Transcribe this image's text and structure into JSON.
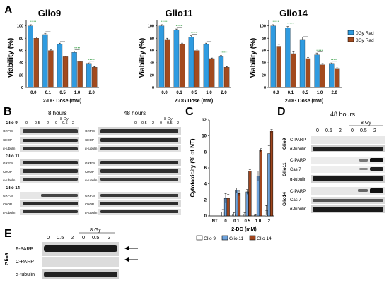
{
  "panels": {
    "A": {
      "letter": "A",
      "charts": [
        {
          "title": "Glio9",
          "ylabel": "Viability (%)",
          "xlabel": "2-DG Dose (mM)",
          "yticks": [
            "0",
            "20",
            "40",
            "60",
            "80",
            "100"
          ],
          "x": [
            "0.0",
            "0.1",
            "0.5",
            "1.0",
            "2.0"
          ]
        },
        {
          "title": "Glio11",
          "ylabel": "Viability (%)",
          "xlabel": "2-DG Dose (mM)",
          "yticks": [
            "0",
            "20",
            "40",
            "60",
            "80",
            "100"
          ],
          "x": [
            "0.0",
            "0.1",
            "0.5",
            "1.0",
            "2.0"
          ]
        },
        {
          "title": "Glio14",
          "ylabel": "Viability (%)",
          "xlabel": "2-DG Dose (mM)",
          "yticks": [
            "0",
            "20",
            "40",
            "60",
            "80",
            "100"
          ],
          "x": [
            "0.0",
            "0.1",
            "0.5",
            "1.0",
            "2.0"
          ]
        }
      ],
      "legend": [
        "0Gy Rad",
        "8Gy Rad"
      ]
    },
    "B": {
      "letter": "B",
      "time_labels": [
        "8 hours",
        "48 hours"
      ],
      "dose_labels": [
        "0",
        "0.5",
        "2",
        "0",
        "0.5",
        "2"
      ],
      "gy_label": "8 Gy",
      "lines": [
        "Glio 9",
        "Glio 11",
        "Glio 14"
      ],
      "proteins": [
        "GRP78",
        "CHOP",
        "α-tubulin"
      ]
    },
    "C": {
      "letter": "C",
      "ylabel": "Cytotoxicity (% of NT)",
      "xlabel": "2-DG (mM)",
      "yticks": [
        "0",
        "2",
        "4",
        "6",
        "8",
        "10",
        "12"
      ],
      "legend": [
        "Glio 9",
        "Glio 11",
        "Glio 14"
      ]
    },
    "D": {
      "letter": "D",
      "time_label": "48 hours",
      "gy_label": "8 Gy",
      "dose_labels": [
        "0",
        "0.5",
        "2",
        "0",
        "0.5",
        "2"
      ],
      "groups": [
        {
          "line": "Glio9",
          "rows": [
            "C-PARP",
            "α-tubulin"
          ]
        },
        {
          "line": "Glio11",
          "rows": [
            "C-PARP",
            "Cas 7",
            "α-tubulin"
          ]
        },
        {
          "line": "Glio14",
          "rows": [
            "C-PARP",
            "Cas 7",
            "α-tubulin"
          ]
        }
      ]
    },
    "E": {
      "letter": "E",
      "gy_label": "8 Gy",
      "dose_labels": [
        "0",
        "0.5",
        "2",
        "0",
        "0.5",
        "2"
      ],
      "line": "Glio9",
      "rows": [
        "F-PARP",
        "C-PARP",
        "α-tubulin"
      ]
    }
  },
  "colors": {
    "gy0": "#2f9be0",
    "gy8": "#a24a1e",
    "glio9": "#ffffff",
    "glio11": "#6fa3dc",
    "glio14": "#a1461e",
    "sig_green": "#2e9a3e",
    "sig_red": "#c82828"
  },
  "chart_data": [
    {
      "type": "bar",
      "title": "Glio9",
      "xlabel": "2-DG Dose (mM)",
      "ylabel": "Viability (%)",
      "ylim": [
        0,
        110
      ],
      "categories": [
        "0.0",
        "0.1",
        "0.5",
        "1.0",
        "2.0"
      ],
      "series": [
        {
          "name": "0Gy Rad",
          "values": [
            100,
            86,
            70,
            57,
            38
          ],
          "errors": [
            2,
            2,
            2,
            2,
            2
          ]
        },
        {
          "name": "8Gy Rad",
          "values": [
            80,
            60,
            50,
            42,
            33
          ],
          "errors": [
            2,
            1,
            1,
            1,
            1
          ]
        }
      ]
    },
    {
      "type": "bar",
      "title": "Glio11",
      "xlabel": "2-DG Dose (mM)",
      "ylabel": "Viability (%)",
      "ylim": [
        0,
        110
      ],
      "categories": [
        "0.0",
        "0.1",
        "0.5",
        "1.0",
        "2.0"
      ],
      "series": [
        {
          "name": "0Gy Rad",
          "values": [
            100,
            93,
            82,
            70,
            50
          ],
          "errors": [
            2,
            2,
            2,
            2,
            2
          ]
        },
        {
          "name": "8Gy Rad",
          "values": [
            78,
            70,
            60,
            47,
            33
          ],
          "errors": [
            2,
            2,
            2,
            1,
            1
          ]
        }
      ]
    },
    {
      "type": "bar",
      "title": "Glio14",
      "xlabel": "2-DG Dose (mM)",
      "ylabel": "Viability (%)",
      "ylim": [
        0,
        110
      ],
      "categories": [
        "0.0",
        "0.1",
        "0.5",
        "1.0",
        "2.0"
      ],
      "series": [
        {
          "name": "0Gy Rad",
          "values": [
            100,
            97,
            78,
            53,
            38
          ],
          "errors": [
            2,
            2,
            4,
            3,
            2
          ]
        },
        {
          "name": "8Gy Rad",
          "values": [
            67,
            55,
            47,
            37,
            30
          ],
          "errors": [
            3,
            3,
            2,
            2,
            2
          ]
        }
      ]
    },
    {
      "type": "bar",
      "xlabel": "2-DG (mM)",
      "ylabel": "Cytotoxicity (% of NT)",
      "ylim": [
        0,
        12
      ],
      "categories": [
        "NT",
        "0",
        "0.1",
        "0.5",
        "1.0",
        "2"
      ],
      "series": [
        {
          "name": "Glio 9",
          "values": [
            0,
            0.5,
            0.2,
            0.2,
            0.1,
            0.7
          ],
          "errors": [
            0,
            0.3,
            0.2,
            0.2,
            0.1,
            0.6
          ]
        },
        {
          "name": "Glio 11",
          "values": [
            0,
            2.2,
            3.2,
            3.0,
            5.0,
            7.8
          ],
          "errors": [
            0,
            0.6,
            0.3,
            0.3,
            0.6,
            1.0
          ]
        },
        {
          "name": "Glio 14",
          "values": [
            0,
            2.2,
            2.8,
            5.6,
            8.2,
            10.6
          ],
          "errors": [
            0,
            0.5,
            0.3,
            0.2,
            0.2,
            0.2
          ]
        }
      ]
    }
  ]
}
